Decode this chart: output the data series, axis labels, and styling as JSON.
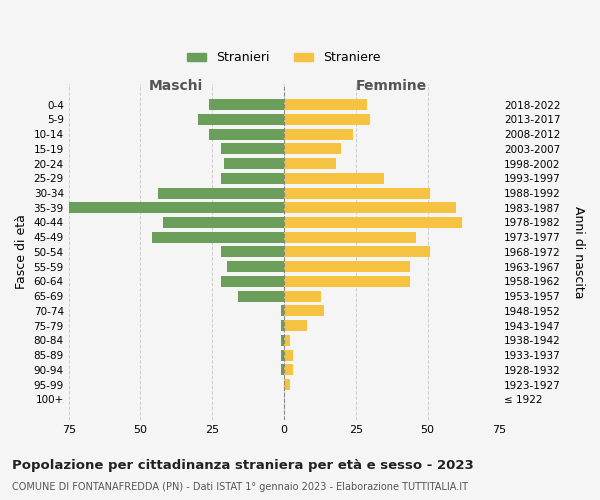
{
  "age_groups": [
    "100+",
    "95-99",
    "90-94",
    "85-89",
    "80-84",
    "75-79",
    "70-74",
    "65-69",
    "60-64",
    "55-59",
    "50-54",
    "45-49",
    "40-44",
    "35-39",
    "30-34",
    "25-29",
    "20-24",
    "15-19",
    "10-14",
    "5-9",
    "0-4"
  ],
  "birth_years": [
    "≤ 1922",
    "1923-1927",
    "1928-1932",
    "1933-1937",
    "1938-1942",
    "1943-1947",
    "1948-1952",
    "1953-1957",
    "1958-1962",
    "1963-1967",
    "1968-1972",
    "1973-1977",
    "1978-1982",
    "1983-1987",
    "1988-1992",
    "1993-1997",
    "1998-2002",
    "2003-2007",
    "2008-2012",
    "2013-2017",
    "2018-2022"
  ],
  "males": [
    0,
    0,
    1,
    1,
    1,
    1,
    1,
    16,
    22,
    20,
    22,
    46,
    42,
    75,
    44,
    22,
    21,
    22,
    26,
    30,
    26
  ],
  "females": [
    0,
    2,
    3,
    3,
    2,
    8,
    14,
    13,
    44,
    44,
    51,
    46,
    62,
    60,
    51,
    35,
    18,
    20,
    24,
    30,
    29
  ],
  "male_color": "#6a9e5a",
  "female_color": "#f5c242",
  "background_color": "#f5f5f5",
  "grid_color": "#cccccc",
  "title": "Popolazione per cittadinanza straniera per età e sesso - 2023",
  "subtitle": "COMUNE DI FONTANAFREDDA (PN) - Dati ISTAT 1° gennaio 2023 - Elaborazione TUTTITALIA.IT",
  "xlabel_left": "Maschi",
  "xlabel_right": "Femmine",
  "ylabel_left": "Fasce di età",
  "ylabel_right": "Anni di nascita",
  "legend_male": "Stranieri",
  "legend_female": "Straniere",
  "xlim": 75
}
